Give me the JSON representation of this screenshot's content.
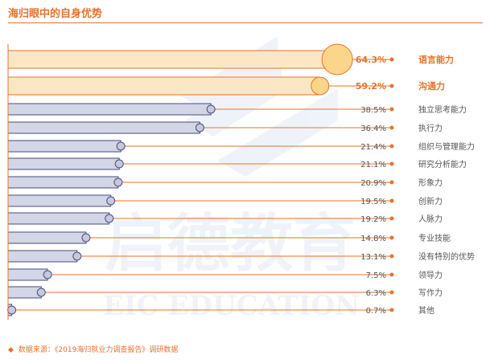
{
  "title": "海归眼中的自身优势",
  "source": {
    "marker": "◆",
    "text": "数据来源：《2019海归就业力调查报告》调研数据"
  },
  "watermark": {
    "cn": "启德教育",
    "en": "EIC EDUCATION"
  },
  "colors": {
    "accent": "#e8722a",
    "highlight_fill": "#fde6c4",
    "highlight_bubble": "#fbd58a",
    "bar_fill": "#d3d6e6",
    "bar_stroke": "#4a4e78",
    "circle_fill": "#c5c9de"
  },
  "chart_data": {
    "type": "bar",
    "orientation": "horizontal",
    "highlight_top": 2,
    "categories": [
      "语言能力",
      "沟通力",
      "独立思考能力",
      "执行力",
      "组织与管理能力",
      "研究分析能力",
      "形象力",
      "创新力",
      "人脉力",
      "专业技能",
      "没有特别的优势",
      "领导力",
      "写作力",
      "其他"
    ],
    "values": [
      64.3,
      59.2,
      38.5,
      36.4,
      21.4,
      21.1,
      20.9,
      19.5,
      19.2,
      14.8,
      13.1,
      7.5,
      6.3,
      0.7
    ],
    "value_labels": [
      "64.3%",
      "59.2%",
      "38.5%",
      "36.4%",
      "21.4%",
      "21.1%",
      "20.9%",
      "19.5%",
      "19.2%",
      "14.8%",
      "13.1%",
      "7.5%",
      "6.3%",
      "0.7%"
    ],
    "unit": "%"
  }
}
